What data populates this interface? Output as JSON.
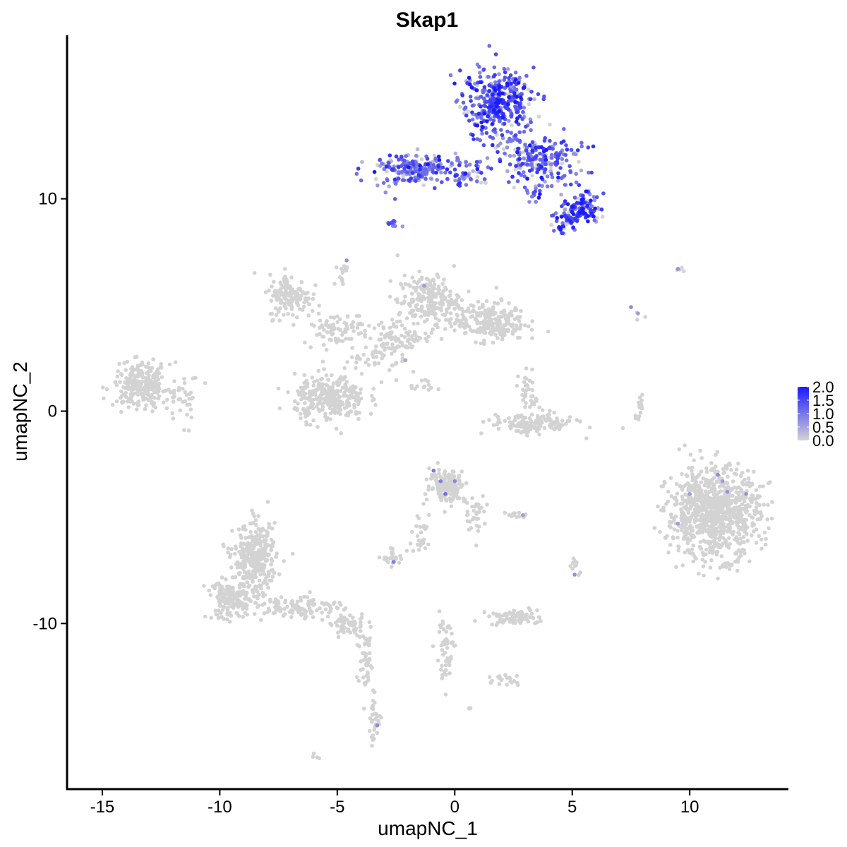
{
  "chart_data": {
    "type": "scatter",
    "title": "Skap1",
    "xlabel": "umapNC_1",
    "ylabel": "umapNC_2",
    "xlim": [
      -16.5,
      14.2
    ],
    "ylim": [
      -17.8,
      17.7
    ],
    "xticks": [
      -15,
      -10,
      -5,
      0,
      5,
      10
    ],
    "xtick_labels": [
      "-15",
      "-10",
      "-5",
      "0",
      "5",
      "10"
    ],
    "yticks": [
      -10,
      0,
      10
    ],
    "ytick_labels": [
      "-10",
      "0",
      "10"
    ],
    "grid": false,
    "legend": {
      "type": "colorbar",
      "placement": "right",
      "min": 0.0,
      "max": 2.0,
      "ticks": [
        "2.0",
        "1.5",
        "1.0",
        "0.5",
        "0.0"
      ],
      "low_color": "#d3d3d3",
      "high_color": "#1a1aff"
    },
    "point_color_low": "#d3d3d3",
    "point_color_high": "#1a1aff",
    "clusters": [
      {
        "cx": 1.8,
        "cy": 14.5,
        "sx": 1.0,
        "sy": 1.1,
        "n": 380,
        "expr": 1.3
      },
      {
        "cx": 3.6,
        "cy": 11.8,
        "sx": 1.3,
        "sy": 0.8,
        "n": 220,
        "expr": 1.2
      },
      {
        "cx": -1.8,
        "cy": 11.4,
        "sx": 1.2,
        "sy": 0.5,
        "n": 200,
        "expr": 1.1
      },
      {
        "cx": 0.7,
        "cy": 11.2,
        "sx": 0.6,
        "sy": 0.5,
        "n": 50,
        "expr": 0.9
      },
      {
        "cx": 5.5,
        "cy": 9.6,
        "sx": 0.5,
        "sy": 0.5,
        "n": 100,
        "expr": 1.4
      },
      {
        "cx": 4.7,
        "cy": 9.1,
        "sx": 0.4,
        "sy": 0.4,
        "n": 60,
        "expr": 1.3
      },
      {
        "cx": 3.5,
        "cy": 10.2,
        "sx": 0.3,
        "sy": 0.3,
        "n": 12,
        "expr": 1.2
      },
      {
        "cx": -2.6,
        "cy": 8.8,
        "sx": 0.2,
        "sy": 0.2,
        "n": 12,
        "expr": 1.1
      },
      {
        "cx": -7.0,
        "cy": 5.4,
        "sx": 0.6,
        "sy": 0.7,
        "n": 140,
        "expr": 0
      },
      {
        "cx": -5.0,
        "cy": 3.9,
        "sx": 1.0,
        "sy": 0.5,
        "n": 80,
        "expr": 0
      },
      {
        "cx": -4.8,
        "cy": 6.5,
        "sx": 0.15,
        "sy": 0.5,
        "n": 15,
        "expr": 0
      },
      {
        "cx": -1.1,
        "cy": 5.2,
        "sx": 0.9,
        "sy": 0.8,
        "n": 220,
        "expr": 0
      },
      {
        "cx": 1.5,
        "cy": 4.2,
        "sx": 1.0,
        "sy": 0.6,
        "n": 230,
        "expr": 0
      },
      {
        "cx": -2.3,
        "cy": 3.5,
        "sx": 0.9,
        "sy": 0.5,
        "n": 80,
        "expr": 0
      },
      {
        "cx": -3.5,
        "cy": 2.5,
        "sx": 0.8,
        "sy": 0.5,
        "n": 45,
        "expr": 0
      },
      {
        "cx": -1.6,
        "cy": 1.3,
        "sx": 0.5,
        "sy": 0.3,
        "n": 15,
        "expr": 0
      },
      {
        "cx": -5.3,
        "cy": 0.6,
        "sx": 1.0,
        "sy": 0.7,
        "n": 300,
        "expr": 0
      },
      {
        "cx": -13.3,
        "cy": 1.2,
        "sx": 0.8,
        "sy": 0.7,
        "n": 250,
        "expr": 0
      },
      {
        "cx": -11.5,
        "cy": 0.5,
        "sx": 0.5,
        "sy": 0.8,
        "n": 30,
        "expr": 0
      },
      {
        "cx": 3.3,
        "cy": -0.6,
        "sx": 1.2,
        "sy": 0.3,
        "n": 150,
        "expr": 0
      },
      {
        "cx": 3.2,
        "cy": 0.8,
        "sx": 0.3,
        "sy": 0.7,
        "n": 40,
        "expr": 0
      },
      {
        "cx": 7.9,
        "cy": 0.2,
        "sx": 0.1,
        "sy": 0.6,
        "n": 14,
        "expr": 0
      },
      {
        "cx": 11.0,
        "cy": -4.8,
        "sx": 1.3,
        "sy": 1.4,
        "n": 900,
        "expr": 0
      },
      {
        "cx": -0.3,
        "cy": -3.5,
        "sx": 0.5,
        "sy": 0.5,
        "n": 160,
        "expr": 0
      },
      {
        "cx": 0.9,
        "cy": -4.8,
        "sx": 0.3,
        "sy": 0.6,
        "n": 35,
        "expr": 0
      },
      {
        "cx": -1.4,
        "cy": -5.8,
        "sx": 0.3,
        "sy": 0.7,
        "n": 30,
        "expr": 0
      },
      {
        "cx": -2.6,
        "cy": -6.9,
        "sx": 0.3,
        "sy": 0.25,
        "n": 30,
        "expr": 0
      },
      {
        "cx": 2.6,
        "cy": -4.9,
        "sx": 0.3,
        "sy": 0.1,
        "n": 12,
        "expr": 0
      },
      {
        "cx": 5.1,
        "cy": -7.3,
        "sx": 0.15,
        "sy": 0.4,
        "n": 10,
        "expr": 0
      },
      {
        "cx": -8.5,
        "cy": -7.0,
        "sx": 0.6,
        "sy": 1.1,
        "n": 330,
        "expr": 0
      },
      {
        "cx": -9.5,
        "cy": -8.9,
        "sx": 0.7,
        "sy": 0.6,
        "n": 160,
        "expr": 0
      },
      {
        "cx": -6.5,
        "cy": -9.2,
        "sx": 1.1,
        "sy": 0.35,
        "n": 110,
        "expr": 0
      },
      {
        "cx": -4.5,
        "cy": -10.1,
        "sx": 0.5,
        "sy": 0.3,
        "n": 60,
        "expr": 0
      },
      {
        "cx": -3.8,
        "cy": -11.8,
        "sx": 0.25,
        "sy": 1.0,
        "n": 50,
        "expr": 0
      },
      {
        "cx": -3.4,
        "cy": -14.5,
        "sx": 0.2,
        "sy": 0.7,
        "n": 30,
        "expr": 0
      },
      {
        "cx": 2.5,
        "cy": -9.7,
        "sx": 0.7,
        "sy": 0.25,
        "n": 80,
        "expr": 0
      },
      {
        "cx": -0.4,
        "cy": -11.2,
        "sx": 0.3,
        "sy": 1.0,
        "n": 50,
        "expr": 0
      },
      {
        "cx": 2.3,
        "cy": -12.6,
        "sx": 0.4,
        "sy": 0.2,
        "n": 20,
        "expr": 0
      },
      {
        "cx": 7.7,
        "cy": 4.7,
        "sx": 0.2,
        "sy": 0.3,
        "n": 3,
        "expr": 0
      },
      {
        "cx": 9.6,
        "cy": 6.7,
        "sx": 0.2,
        "sy": 0.1,
        "n": 4,
        "expr": 0
      },
      {
        "cx": -5.9,
        "cy": -16.2,
        "sx": 0.15,
        "sy": 0.1,
        "n": 4,
        "expr": 0
      },
      {
        "cx": 0.6,
        "cy": -14.0,
        "sx": 0.1,
        "sy": 0.1,
        "n": 3,
        "expr": 0
      }
    ],
    "highlighted_points": [
      {
        "x": -0.9,
        "y": -2.8,
        "v": 1.0
      },
      {
        "x": -0.6,
        "y": -3.3,
        "v": 0.9
      },
      {
        "x": -0.4,
        "y": -3.9,
        "v": 1.1
      },
      {
        "x": 0.0,
        "y": -3.3,
        "v": 0.8
      },
      {
        "x": -1.3,
        "y": 5.9,
        "v": 0.6
      },
      {
        "x": -4.6,
        "y": 7.1,
        "v": 0.7
      },
      {
        "x": -2.1,
        "y": 2.4,
        "v": 0.5
      },
      {
        "x": 7.5,
        "y": 4.9,
        "v": 0.8
      },
      {
        "x": 7.8,
        "y": 4.6,
        "v": 0.6
      },
      {
        "x": 9.5,
        "y": 6.7,
        "v": 0.7
      },
      {
        "x": 2.9,
        "y": -4.9,
        "v": 0.6
      },
      {
        "x": -2.6,
        "y": -7.1,
        "v": 0.9
      },
      {
        "x": 5.1,
        "y": -7.7,
        "v": 0.7
      },
      {
        "x": -3.3,
        "y": -14.8,
        "v": 0.8
      },
      {
        "x": 11.2,
        "y": -3.0,
        "v": 0.8
      },
      {
        "x": 11.6,
        "y": -3.8,
        "v": 0.7
      },
      {
        "x": 10.0,
        "y": -3.9,
        "v": 0.6
      },
      {
        "x": 12.4,
        "y": -3.9,
        "v": 0.7
      },
      {
        "x": 9.5,
        "y": -5.3,
        "v": 0.6
      },
      {
        "x": 11.4,
        "y": -3.3,
        "v": 0.6
      }
    ]
  }
}
